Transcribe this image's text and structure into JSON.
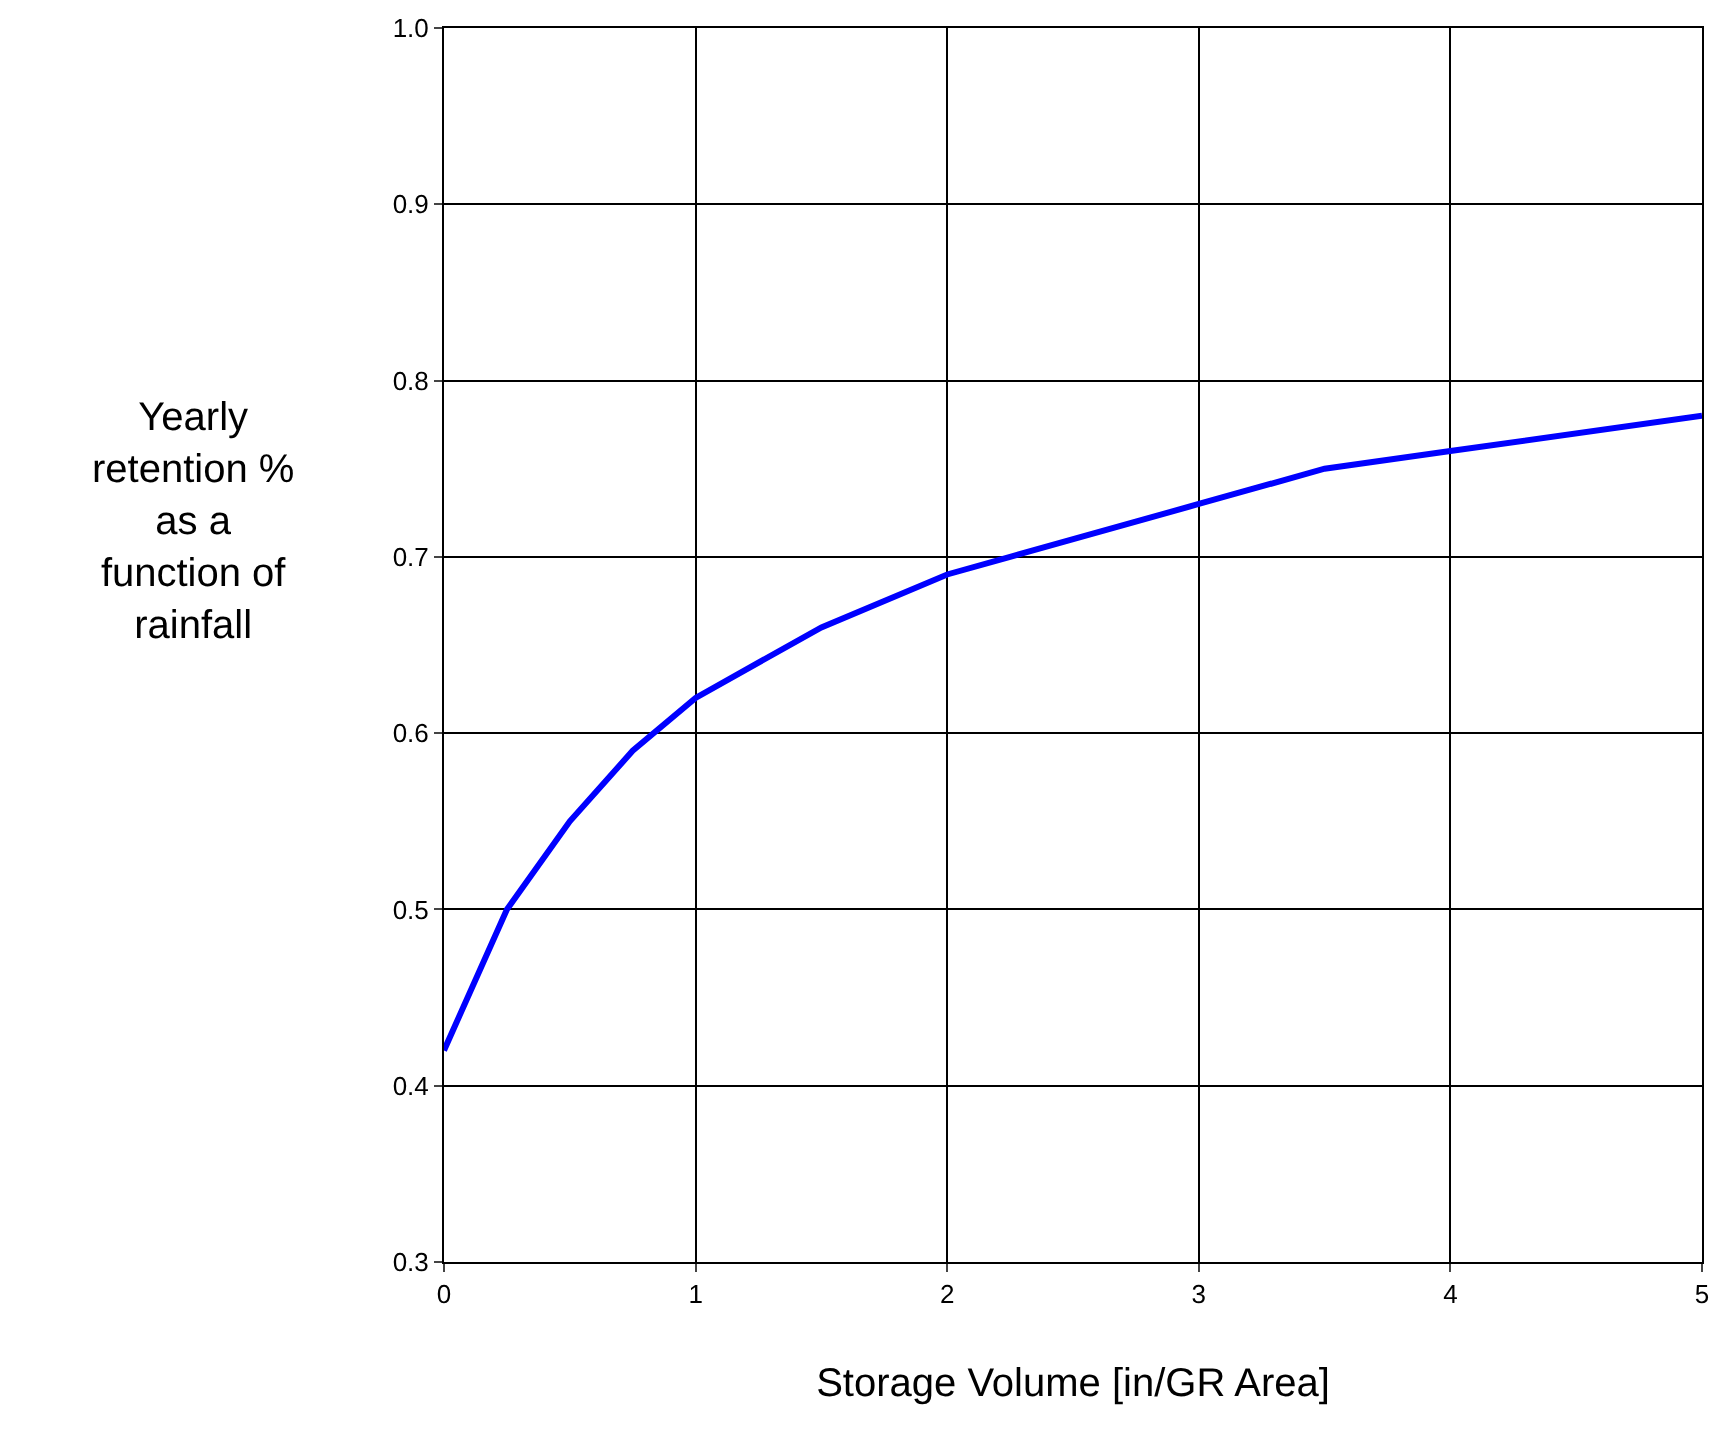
{
  "chart_data": {
    "type": "line",
    "xlabel": "Storage Volume [in/GR Area]",
    "ylabel": "Yearly\nretention %\nas a\nfunction of\nrainfall",
    "x": [
      0,
      0.25,
      0.5,
      0.75,
      1,
      1.5,
      2,
      2.25,
      3,
      3.5,
      4,
      5
    ],
    "series": [
      {
        "color": "#0000ff",
        "values": [
          0.42,
          0.5,
          0.55,
          0.59,
          0.62,
          0.66,
          0.69,
          0.7,
          0.73,
          0.75,
          0.76,
          0.78
        ]
      }
    ],
    "xlim": [
      0,
      5
    ],
    "xticks": [
      0,
      1,
      2,
      3,
      4,
      5
    ],
    "ylim": [
      0.3,
      1.0
    ],
    "yticks": [
      0.3,
      0.4,
      0.5,
      0.6,
      0.7,
      0.8,
      0.9,
      {
        "value": 1.0,
        "label": "1.0"
      }
    ],
    "grid": true,
    "marker": "none",
    "line_style": "solid"
  }
}
